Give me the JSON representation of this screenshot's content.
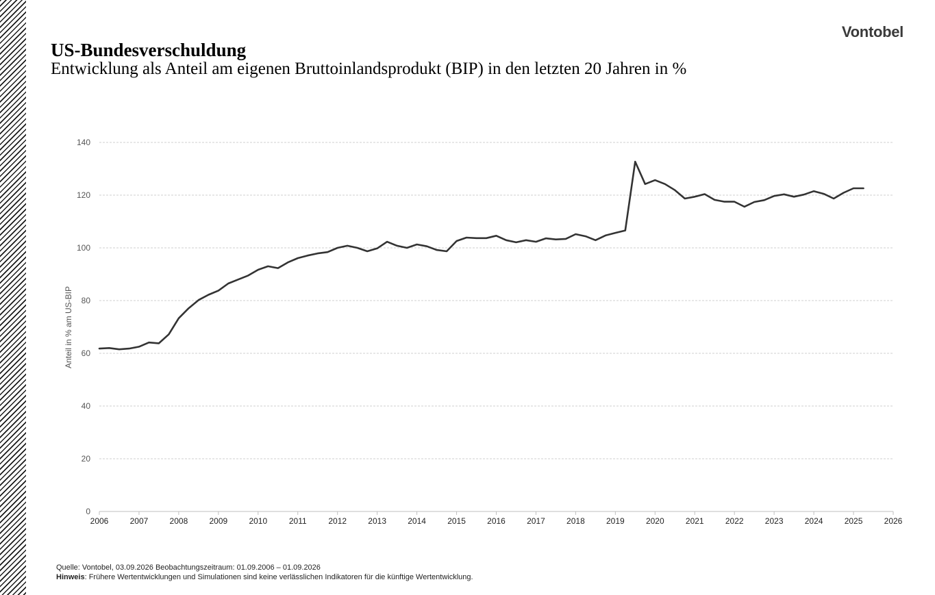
{
  "header": {
    "brand": "Vontobel",
    "title": "US-Bundesverschuldung",
    "subtitle": "Entwicklung als Anteil am eigenen Bruttoinlandsprodukt (BIP) in den letzten 20 Jahren in %"
  },
  "footer": {
    "source": "Quelle: Vontobel, 03.09.2026 Beobachtungszeitraum: 01.09.2006 – 01.09.2026",
    "note_label": "Hinweis",
    "note_text": ":  Frühere Wertentwicklungen und Simulationen sind keine verlässlichen Indikatoren für die künftige Wertentwicklung."
  },
  "chart_data": {
    "type": "line",
    "title": "",
    "xlabel": "",
    "ylabel": "Anteil in % am US-BIP",
    "xlim": [
      2006,
      2026
    ],
    "ylim": [
      0,
      140
    ],
    "x_ticks": [
      "2006",
      "2007",
      "2008",
      "2009",
      "2010",
      "2011",
      "2012",
      "2013",
      "2014",
      "2015",
      "2016",
      "2017",
      "2018",
      "2019",
      "2020",
      "2021",
      "2022",
      "2023",
      "2024",
      "2025",
      "2026"
    ],
    "y_ticks": [
      "0",
      "20",
      "40",
      "60",
      "80",
      "100",
      "120",
      "140"
    ],
    "grid": "horizontal-dashed",
    "line_color": "#333333",
    "series": [
      {
        "x": [
          2006.0,
          2006.25,
          2006.5,
          2006.75,
          2007.0,
          2007.25,
          2007.5,
          2007.75,
          2008.0,
          2008.25,
          2008.5,
          2008.75,
          2009.0,
          2009.25,
          2009.5,
          2009.75,
          2010.0,
          2010.25,
          2010.5,
          2010.75,
          2011.0,
          2011.25,
          2011.5,
          2011.75,
          2012.0,
          2012.25,
          2012.5,
          2012.75,
          2013.0,
          2013.25,
          2013.5,
          2013.75,
          2014.0,
          2014.25,
          2014.5,
          2014.75,
          2015.0,
          2015.25,
          2015.5,
          2015.75,
          2016.0,
          2016.25,
          2016.5,
          2016.75,
          2017.0,
          2017.25,
          2017.5,
          2017.75,
          2018.0,
          2018.25,
          2018.5,
          2018.75,
          2019.0,
          2019.25,
          2019.5,
          2019.75,
          2020.0,
          2020.25,
          2020.5,
          2020.75,
          2021.0,
          2021.25,
          2021.5,
          2021.75,
          2022.0,
          2022.25,
          2022.5,
          2022.75,
          2023.0,
          2023.25,
          2023.5,
          2023.75,
          2024.0,
          2024.25,
          2024.5,
          2024.75,
          2025.0,
          2025.25
        ],
        "y": [
          61.8,
          62.0,
          61.5,
          61.8,
          62.5,
          64.1,
          63.8,
          67.2,
          73.3,
          77.1,
          80.2,
          82.2,
          83.8,
          86.5,
          88.0,
          89.5,
          91.7,
          93.0,
          92.3,
          94.5,
          96.1,
          97.1,
          97.9,
          98.4,
          100.0,
          100.8,
          100.0,
          98.7,
          99.8,
          102.3,
          100.8,
          100.0,
          101.3,
          100.6,
          99.2,
          98.7,
          102.6,
          103.9,
          103.7,
          103.7,
          104.6,
          102.9,
          102.1,
          102.9,
          102.3,
          103.6,
          103.2,
          103.4,
          105.2,
          104.4,
          102.9,
          104.7,
          105.7,
          106.6,
          132.7,
          124.2,
          125.7,
          124.2,
          121.9,
          118.7,
          119.4,
          120.4,
          118.2,
          117.5,
          117.5,
          115.6,
          117.4,
          118.1,
          119.7,
          120.3,
          119.4,
          120.2,
          121.5,
          120.5,
          118.7,
          120.9,
          122.6,
          122.6
        ]
      }
    ]
  }
}
